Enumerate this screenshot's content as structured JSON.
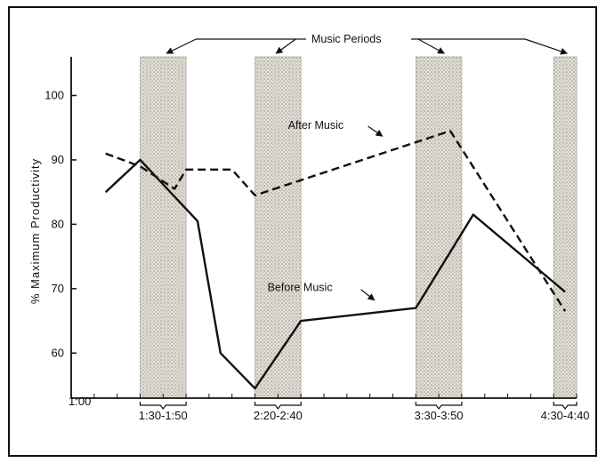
{
  "chart_data": {
    "type": "line",
    "title": "",
    "xlabel": "",
    "ylabel": "% Maximum Productivity",
    "x_start_label": "1:00",
    "yticks": [
      60,
      70,
      80,
      90,
      100
    ],
    "ylim": [
      53,
      106
    ],
    "xlim": [
      "1:00",
      "4:40"
    ],
    "music_periods_label": "Music Periods",
    "music_periods": [
      {
        "label": "1:30-1:50",
        "start": "1:30",
        "end": "1:50"
      },
      {
        "label": "2:20-2:40",
        "start": "2:20",
        "end": "2:40"
      },
      {
        "label": "3:30-3:50",
        "start": "3:30",
        "end": "3:50"
      },
      {
        "label": "4:30-4:40",
        "start": "4:30",
        "end": "4:40"
      }
    ],
    "series": [
      {
        "name": "Before Music",
        "style": "solid",
        "points": [
          {
            "x": "1:15",
            "y": 85
          },
          {
            "x": "1:30",
            "y": 90
          },
          {
            "x": "1:55",
            "y": 80.5
          },
          {
            "x": "2:05",
            "y": 60
          },
          {
            "x": "2:20",
            "y": 54.5
          },
          {
            "x": "2:40",
            "y": 65
          },
          {
            "x": "3:30",
            "y": 67
          },
          {
            "x": "3:55",
            "y": 81.5
          },
          {
            "x": "4:35",
            "y": 69.5
          }
        ]
      },
      {
        "name": "After Music",
        "style": "dashed",
        "points": [
          {
            "x": "1:15",
            "y": 91
          },
          {
            "x": "1:30",
            "y": 89
          },
          {
            "x": "1:45",
            "y": 85.5
          },
          {
            "x": "1:50",
            "y": 88.5
          },
          {
            "x": "2:10",
            "y": 88.5
          },
          {
            "x": "2:20",
            "y": 84.5
          },
          {
            "x": "3:45",
            "y": 94.5
          },
          {
            "x": "4:35",
            "y": 66.5
          }
        ]
      }
    ],
    "grid": false,
    "colors": {
      "line": "#111111",
      "band": "#d8d2c8",
      "background": "#ffffff"
    }
  }
}
